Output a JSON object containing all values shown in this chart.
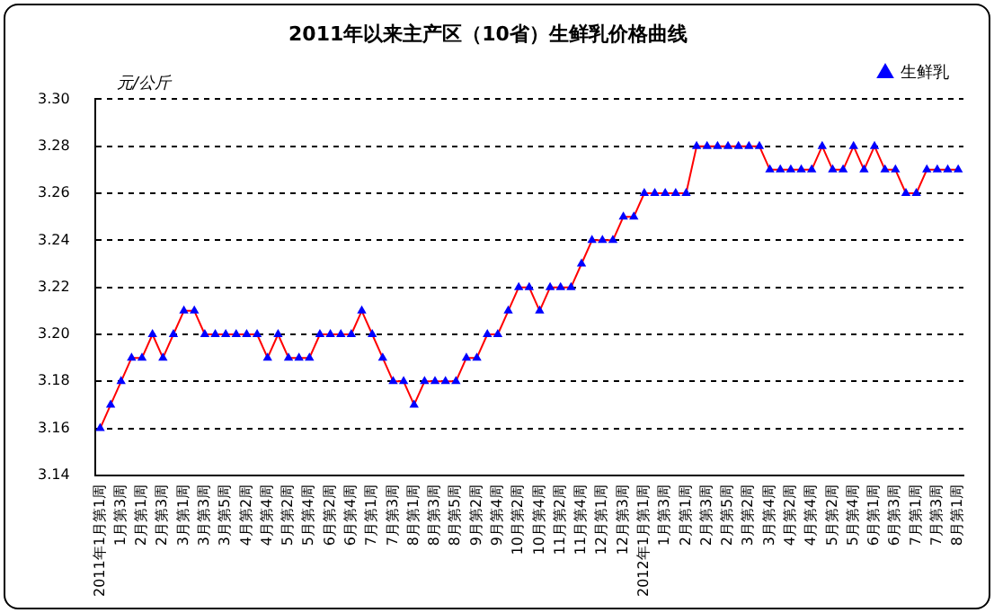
{
  "chart_data": {
    "type": "line",
    "title": "2011年以来主产区（10省）生鲜乳价格曲线",
    "ylabel": "元/公斤",
    "categories": [
      "2011年1月第1周",
      null,
      "1月第3周",
      null,
      "2月第1周",
      null,
      "2月第3周",
      null,
      "3月第1周",
      null,
      "3月第3周",
      null,
      "3月第5周",
      null,
      "4月第2周",
      null,
      "4月第4周",
      null,
      "5月第2周",
      null,
      "5月第4周",
      null,
      "6月第2周",
      null,
      "6月第4周",
      null,
      "7月第1周",
      null,
      "7月第3周",
      null,
      "8月第1周",
      null,
      "8月第3周",
      null,
      "8月第5周",
      null,
      "9月第2周",
      null,
      "9月第4周",
      null,
      "10月第2周",
      null,
      "10月第4周",
      null,
      "11月第2周",
      null,
      "11月第4周",
      null,
      "12月第1周",
      null,
      "12月第3周",
      null,
      "2012年1月第1周",
      null,
      "1月第3周",
      null,
      "2月第1周",
      null,
      "2月第3周",
      null,
      "2月第5周",
      null,
      "3月第2周",
      null,
      "3月第4周",
      null,
      "4月第2周",
      null,
      "4月第4周",
      null,
      "5月第2周",
      null,
      "5月第4周",
      null,
      "6月第1周",
      null,
      "6月第3周",
      null,
      "7月第1周",
      null,
      "7月第3周",
      null,
      "8月第1周"
    ],
    "series": [
      {
        "name": "生鲜乳",
        "color": "#ff0000",
        "colors": [
          "#0000ff",
          "#0000ff",
          "#0000ff",
          "#0000ff",
          "#0000ff",
          "#0000ff",
          "#0000ff",
          "#0000ff",
          "#0000ff",
          "#0000ff",
          "#0000ff",
          "#0000ff",
          "#0000ff",
          "#0000ff",
          "#0000ff",
          "#0000ff",
          "#0000ff",
          "#0000ff",
          "#0000ff",
          "#0000ff",
          "#0000ff",
          "#0000ff",
          "#0000ff",
          "#0000ff",
          "#0000ff",
          "#0000ff",
          "#0000ff",
          "#0000ff",
          "#0000ff",
          "#0000ff",
          "#0000ff",
          "#0000ff",
          "#0000ff",
          "#0000ff",
          "#0000ff",
          "#0000ff",
          "#0000ff",
          "#0000ff",
          "#0000ff",
          "#0000ff",
          "#0000ff",
          "#0000ff",
          "#0000ff",
          "#0000ff",
          "#0000ff",
          "#0000ff",
          "#0000ff",
          "#0000ff",
          "#0000ff",
          "#0000ff",
          "#0000ff",
          "#0000ff",
          "#0000ff",
          "#0000ff",
          "#0000ff",
          "#0000ff",
          "#0000ff",
          "#0000ff",
          "#0000ff",
          "#0000ff",
          "#0000ff",
          "#0000ff",
          "#0000ff",
          "#0000ff",
          "#0000ff",
          "#0000ff",
          "#0000ff",
          "#0000ff",
          "#0000ff",
          "#0000ff",
          "#0000ff",
          "#0000ff",
          "#0000ff",
          "#0000ff",
          "#0000ff",
          "#0000ff",
          "#0000ff",
          "#0000ff",
          "#0000ff",
          "#0000ff",
          "#0000ff",
          "#0000ff",
          "#0000ff"
        ],
        "values": [
          3.16,
          3.17,
          3.18,
          3.19,
          3.19,
          3.2,
          3.19,
          3.2,
          3.21,
          3.21,
          3.2,
          3.2,
          3.2,
          3.2,
          3.2,
          3.2,
          3.19,
          3.2,
          3.19,
          3.19,
          3.19,
          3.2,
          3.2,
          3.2,
          3.2,
          3.21,
          3.2,
          3.19,
          3.18,
          3.18,
          3.17,
          3.18,
          3.18,
          3.18,
          3.18,
          3.19,
          3.19,
          3.2,
          3.2,
          3.21,
          3.22,
          3.22,
          3.21,
          3.22,
          3.22,
          3.22,
          3.23,
          3.24,
          3.24,
          3.24,
          3.25,
          3.25,
          3.26,
          3.26,
          3.26,
          3.26,
          3.26,
          3.28,
          3.28,
          3.28,
          3.28,
          3.28,
          3.28,
          3.28,
          3.27,
          3.27,
          3.27,
          3.27,
          3.27,
          3.28,
          3.27,
          3.27,
          3.28,
          3.27,
          3.28,
          3.27,
          3.27,
          3.26,
          3.26,
          3.27,
          3.27,
          3.27,
          3.27
        ]
      }
    ],
    "ylim": [
      3.14,
      3.3
    ],
    "yticks": [
      3.14,
      3.16,
      3.18,
      {
        "value": 3.2,
        "label": "3.20"
      },
      3.22,
      3.24,
      3.26,
      3.28,
      {
        "value": 3.3,
        "label": "3.30"
      }
    ],
    "grid": "y",
    "legend": "top right",
    "marker": "triangle",
    "line_style": "solid"
  }
}
